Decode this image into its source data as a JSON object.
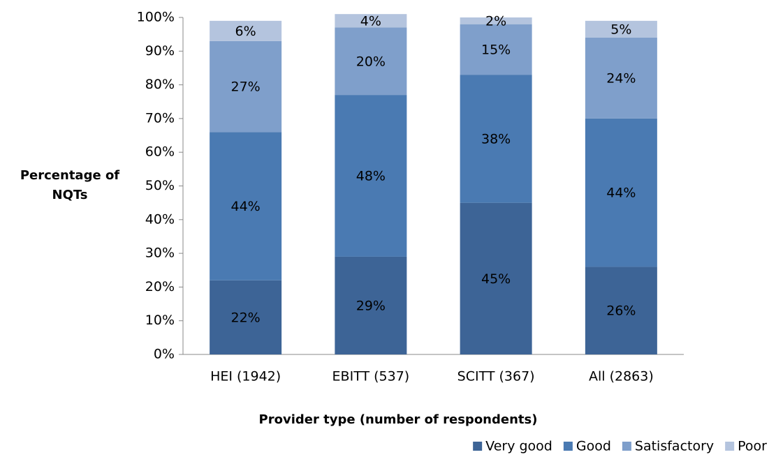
{
  "chart_data": {
    "type": "stacked_bar",
    "ylabel": "Percentage of NQTs",
    "xlabel": "Provider type (number of respondents)",
    "categories": [
      "HEI (1942)",
      "EBITT (537)",
      "SCITT (367)",
      "All (2863)"
    ],
    "series": [
      {
        "name": "Very good",
        "color": "#3d6496",
        "values": [
          22,
          29,
          45,
          26
        ],
        "value_labels": [
          "22%",
          "29%",
          "45%",
          "26%"
        ]
      },
      {
        "name": "Good",
        "color": "#4a7ab2",
        "values": [
          44,
          48,
          38,
          44
        ],
        "value_labels": [
          "44%",
          "48%",
          "38%",
          "44%"
        ]
      },
      {
        "name": "Satisfactory",
        "color": "#7f9fcb",
        "values": [
          27,
          20,
          15,
          24
        ],
        "value_labels": [
          "27%",
          "20%",
          "15%",
          "24%"
        ]
      },
      {
        "name": "Poor",
        "color": "#b4c4de",
        "values": [
          6,
          4,
          2,
          5
        ],
        "value_labels": [
          "6%",
          "4%",
          "2%",
          "5%"
        ]
      }
    ],
    "ylim": [
      0,
      100
    ],
    "yticks": [
      {
        "value": 0,
        "label": "0%"
      },
      {
        "value": 10,
        "label": "10%"
      },
      {
        "value": 20,
        "label": "20%"
      },
      {
        "value": 30,
        "label": "30%"
      },
      {
        "value": 40,
        "label": "40%"
      },
      {
        "value": 50,
        "label": "50%"
      },
      {
        "value": 60,
        "label": "60%"
      },
      {
        "value": 70,
        "label": "70%"
      },
      {
        "value": 80,
        "label": "80%"
      },
      {
        "value": 90,
        "label": "90%"
      },
      {
        "value": 100,
        "label": "100%"
      }
    ],
    "legend": "bottom-right"
  }
}
